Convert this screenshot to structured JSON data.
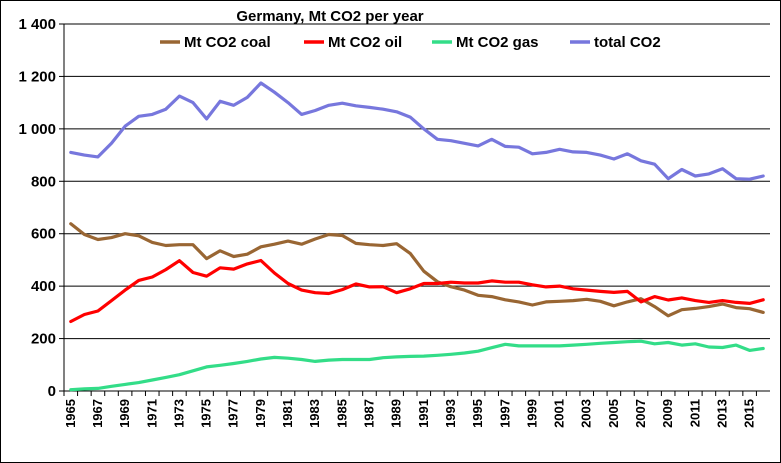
{
  "chart_data": {
    "type": "line",
    "title": "Germany, Mt CO2 per year",
    "xlabel": "",
    "ylabel": "",
    "ylim": [
      0,
      1400
    ],
    "yticks": [
      0,
      200,
      400,
      600,
      800,
      1000,
      1200,
      1400
    ],
    "ytick_labels": [
      "0",
      "200",
      "400",
      "600",
      "800",
      "1 000",
      "1 200",
      "1 400"
    ],
    "xticks": [
      1965,
      1967,
      1969,
      1971,
      1973,
      1975,
      1977,
      1979,
      1981,
      1983,
      1985,
      1987,
      1989,
      1991,
      1993,
      1995,
      1997,
      1999,
      2001,
      2003,
      2005,
      2007,
      2009,
      2011,
      2013,
      2015
    ],
    "grid": true,
    "legend_position": "top",
    "x": [
      1965,
      1966,
      1967,
      1968,
      1969,
      1970,
      1971,
      1972,
      1973,
      1974,
      1975,
      1976,
      1977,
      1978,
      1979,
      1980,
      1981,
      1982,
      1983,
      1984,
      1985,
      1986,
      1987,
      1988,
      1989,
      1990,
      1991,
      1992,
      1993,
      1994,
      1995,
      1996,
      1997,
      1998,
      1999,
      2000,
      2001,
      2002,
      2003,
      2004,
      2005,
      2006,
      2007,
      2008,
      2009,
      2010,
      2011,
      2012,
      2013,
      2014,
      2015,
      2016
    ],
    "series": [
      {
        "name": "Mt CO2 coal",
        "color": "#996633",
        "values": [
          638,
          597,
          578,
          585,
          600,
          592,
          567,
          555,
          558,
          558,
          505,
          535,
          513,
          522,
          550,
          560,
          572,
          560,
          580,
          597,
          593,
          563,
          558,
          555,
          562,
          525,
          457,
          417,
          398,
          385,
          365,
          360,
          348,
          340,
          328,
          340,
          342,
          345,
          350,
          342,
          325,
          340,
          352,
          322,
          287,
          310,
          315,
          322,
          332,
          318,
          314,
          300
        ]
      },
      {
        "name": "Mt CO2 oil",
        "color": "#ff0000",
        "values": [
          265,
          292,
          305,
          345,
          385,
          422,
          435,
          463,
          497,
          452,
          438,
          470,
          465,
          485,
          498,
          450,
          410,
          385,
          375,
          372,
          387,
          408,
          397,
          398,
          375,
          390,
          410,
          410,
          415,
          412,
          412,
          420,
          415,
          415,
          405,
          397,
          400,
          390,
          385,
          380,
          376,
          380,
          340,
          360,
          347,
          355,
          345,
          338,
          345,
          338,
          334,
          348
        ]
      },
      {
        "name": "Mt CO2 gas",
        "color": "#33dd88",
        "values": [
          5,
          8,
          10,
          18,
          25,
          32,
          42,
          52,
          62,
          77,
          92,
          98,
          105,
          113,
          122,
          128,
          125,
          120,
          113,
          118,
          120,
          120,
          120,
          127,
          130,
          132,
          133,
          136,
          140,
          145,
          152,
          165,
          178,
          172,
          172,
          172,
          172,
          175,
          178,
          182,
          185,
          188,
          190,
          180,
          185,
          175,
          180,
          168,
          166,
          175,
          155,
          162
        ]
      },
      {
        "name": "total CO2",
        "color": "#7777dd",
        "values": [
          910,
          900,
          893,
          945,
          1010,
          1048,
          1055,
          1075,
          1125,
          1100,
          1038,
          1105,
          1090,
          1120,
          1175,
          1140,
          1100,
          1055,
          1070,
          1090,
          1098,
          1088,
          1082,
          1075,
          1065,
          1045,
          1000,
          960,
          955,
          945,
          935,
          960,
          933,
          930,
          905,
          910,
          922,
          912,
          910,
          900,
          885,
          905,
          878,
          865,
          810,
          845,
          820,
          828,
          848,
          810,
          808,
          820
        ]
      }
    ]
  }
}
